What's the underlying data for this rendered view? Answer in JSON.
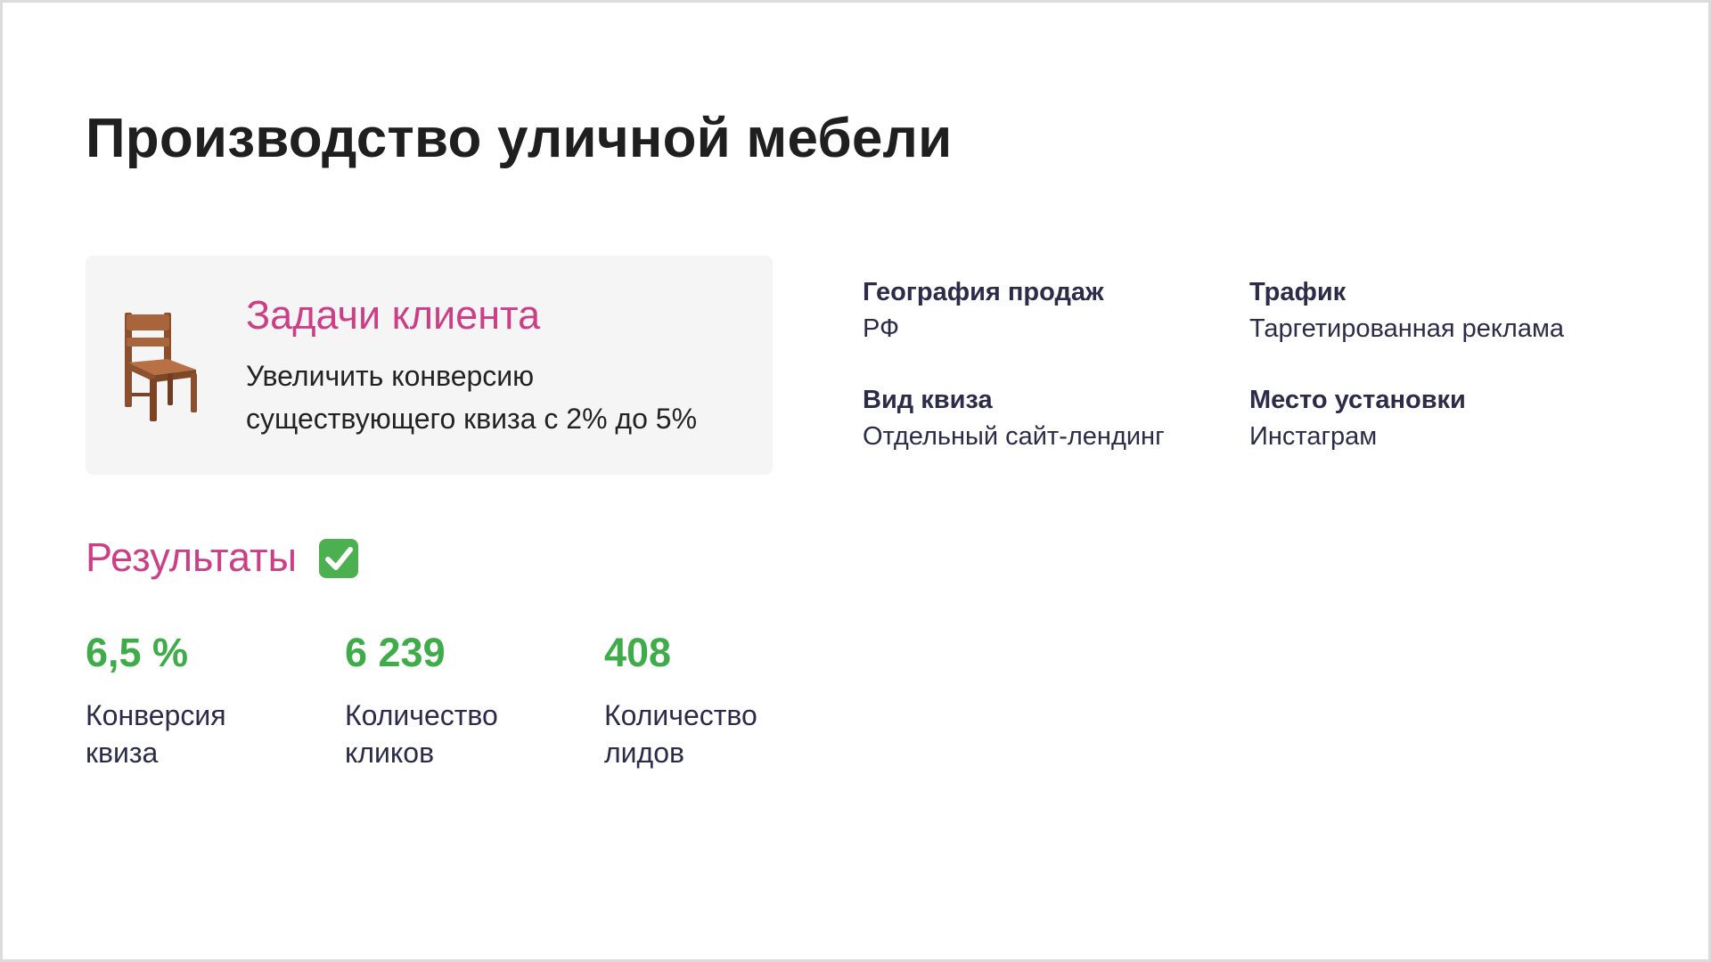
{
  "title": "Производство уличной мебели",
  "task": {
    "heading": "Задачи клиента",
    "line1": "Увеличить конверсию",
    "line2": "существующего квиза с 2% до 5%",
    "icon": "chair-icon"
  },
  "info": {
    "geography_label": "География продаж",
    "geography_value": "РФ",
    "traffic_label": "Трафик",
    "traffic_value": "Таргетированная реклама",
    "quiz_type_label": "Вид квиза",
    "quiz_type_value": "Отдельный сайт-лендинг",
    "placement_label": "Место установки",
    "placement_value": "Инстаграм"
  },
  "results": {
    "heading": "Результаты",
    "icon": "check-mark-icon",
    "metrics": [
      {
        "value": "6,5 %",
        "label_line1": "Конверсия",
        "label_line2": "квиза"
      },
      {
        "value": "6 239",
        "label_line1": "Количество",
        "label_line2": "кликов"
      },
      {
        "value": "408",
        "label_line1": "Количество",
        "label_line2": "лидов"
      }
    ]
  },
  "colors": {
    "accent_pink": "#cc3f86",
    "metric_green": "#3eac48",
    "text_dark": "#1f1f1f",
    "text_navy": "#2c2c4a",
    "card_bg": "#f5f5f5",
    "check_green": "#4caf50"
  }
}
